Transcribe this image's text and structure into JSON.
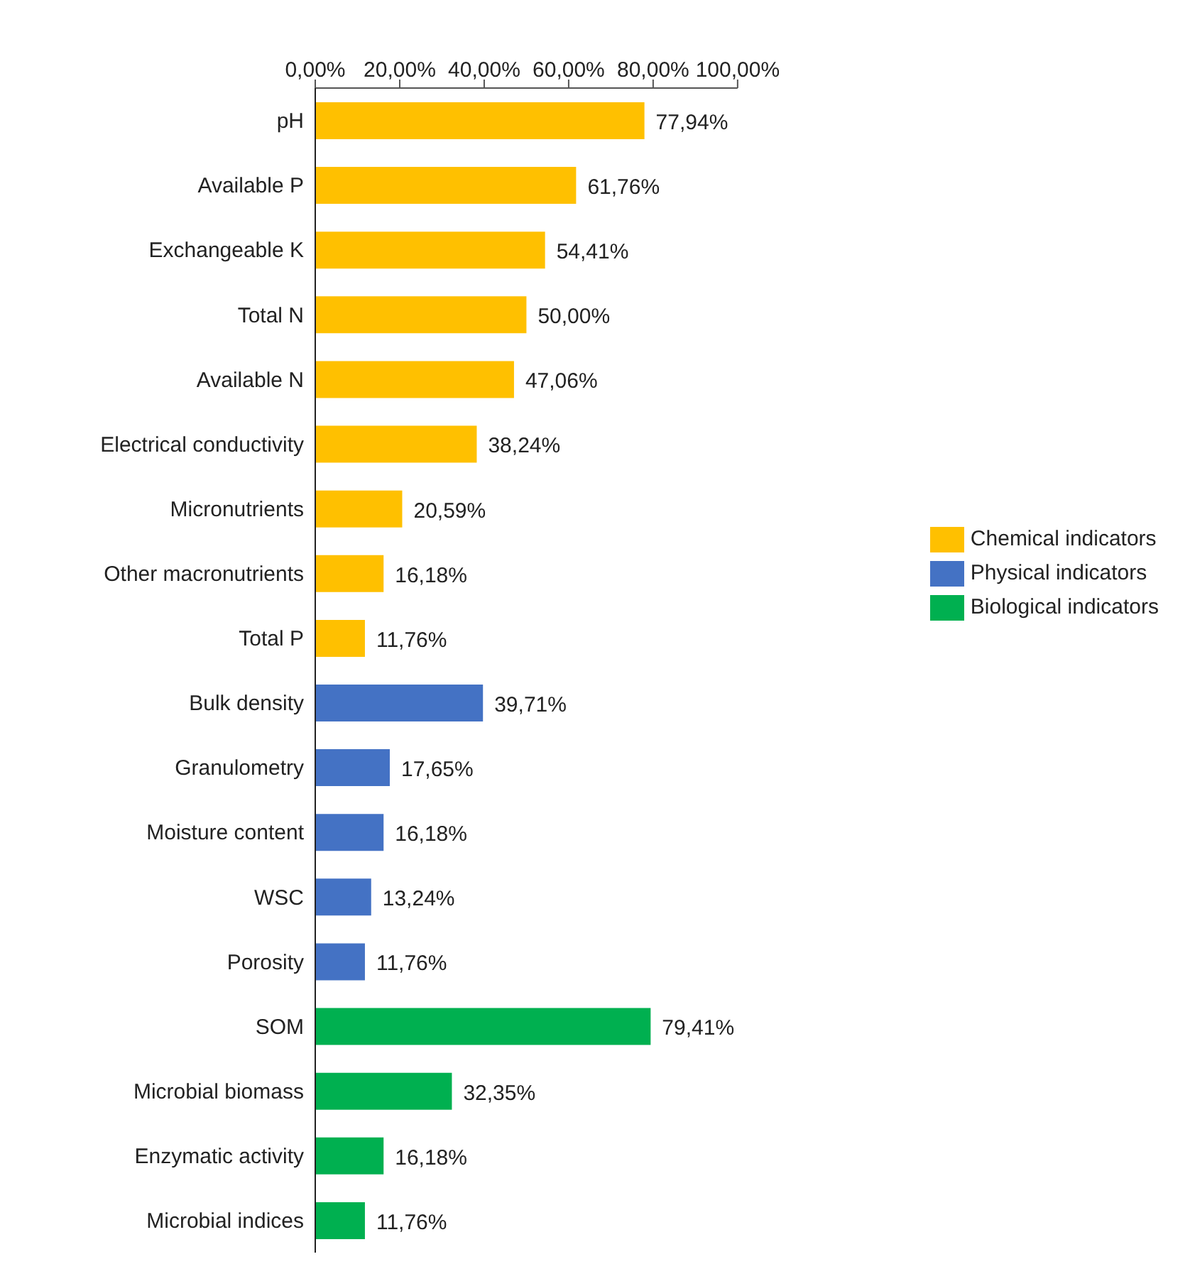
{
  "chart_data": {
    "type": "bar",
    "orientation": "horizontal",
    "stacked": true,
    "categories": [
      "pH",
      "Available P",
      "Exchangeable K",
      "Total N",
      "Available N",
      "Electrical conductivity",
      "Micronutrients",
      "Other macronutrients",
      "Total P",
      "Bulk density",
      "Granulometry",
      "Moisture content",
      "WSC",
      "Porosity",
      "SOM",
      "Microbial biomass",
      "Enzymatic activity",
      "Microbial indices"
    ],
    "series": [
      {
        "name": "Chemical indicators",
        "color": "#ffc000",
        "values": [
          77.94,
          61.76,
          54.41,
          50.0,
          47.06,
          38.24,
          20.59,
          16.18,
          11.76,
          null,
          null,
          null,
          null,
          null,
          null,
          null,
          null,
          null
        ],
        "value_labels": [
          "77,94%",
          "61,76%",
          "54,41%",
          "50,00%",
          "47,06%",
          "38,24%",
          "20,59%",
          "16,18%",
          "11,76%",
          null,
          null,
          null,
          null,
          null,
          null,
          null,
          null,
          null
        ]
      },
      {
        "name": "Physical indicators",
        "color": "#4472c4",
        "values": [
          null,
          null,
          null,
          null,
          null,
          null,
          null,
          null,
          null,
          39.71,
          17.65,
          16.18,
          13.24,
          11.76,
          null,
          null,
          null,
          null
        ],
        "value_labels": [
          null,
          null,
          null,
          null,
          null,
          null,
          null,
          null,
          null,
          "39,71%",
          "17,65%",
          "16,18%",
          "13,24%",
          "11,76%",
          null,
          null,
          null,
          null
        ]
      },
      {
        "name": "Biological indicators",
        "color": "#00b050",
        "values": [
          null,
          null,
          null,
          null,
          null,
          null,
          null,
          null,
          null,
          null,
          null,
          null,
          null,
          null,
          79.41,
          32.35,
          16.18,
          11.76
        ],
        "value_labels": [
          null,
          null,
          null,
          null,
          null,
          null,
          null,
          null,
          null,
          null,
          null,
          null,
          null,
          null,
          "79,41%",
          "32,35%",
          "16,18%",
          "11,76%"
        ]
      }
    ],
    "xlim": [
      0,
      100
    ],
    "xticks": [
      {
        "value": 0,
        "label": "0,00%"
      },
      {
        "value": 20,
        "label": "20,00%"
      },
      {
        "value": 40,
        "label": "40,00%"
      },
      {
        "value": 60,
        "label": "60,00%"
      },
      {
        "value": 80,
        "label": "80,00%"
      },
      {
        "value": 100,
        "label": "100,00%"
      }
    ],
    "grid": false,
    "legend": "right"
  }
}
